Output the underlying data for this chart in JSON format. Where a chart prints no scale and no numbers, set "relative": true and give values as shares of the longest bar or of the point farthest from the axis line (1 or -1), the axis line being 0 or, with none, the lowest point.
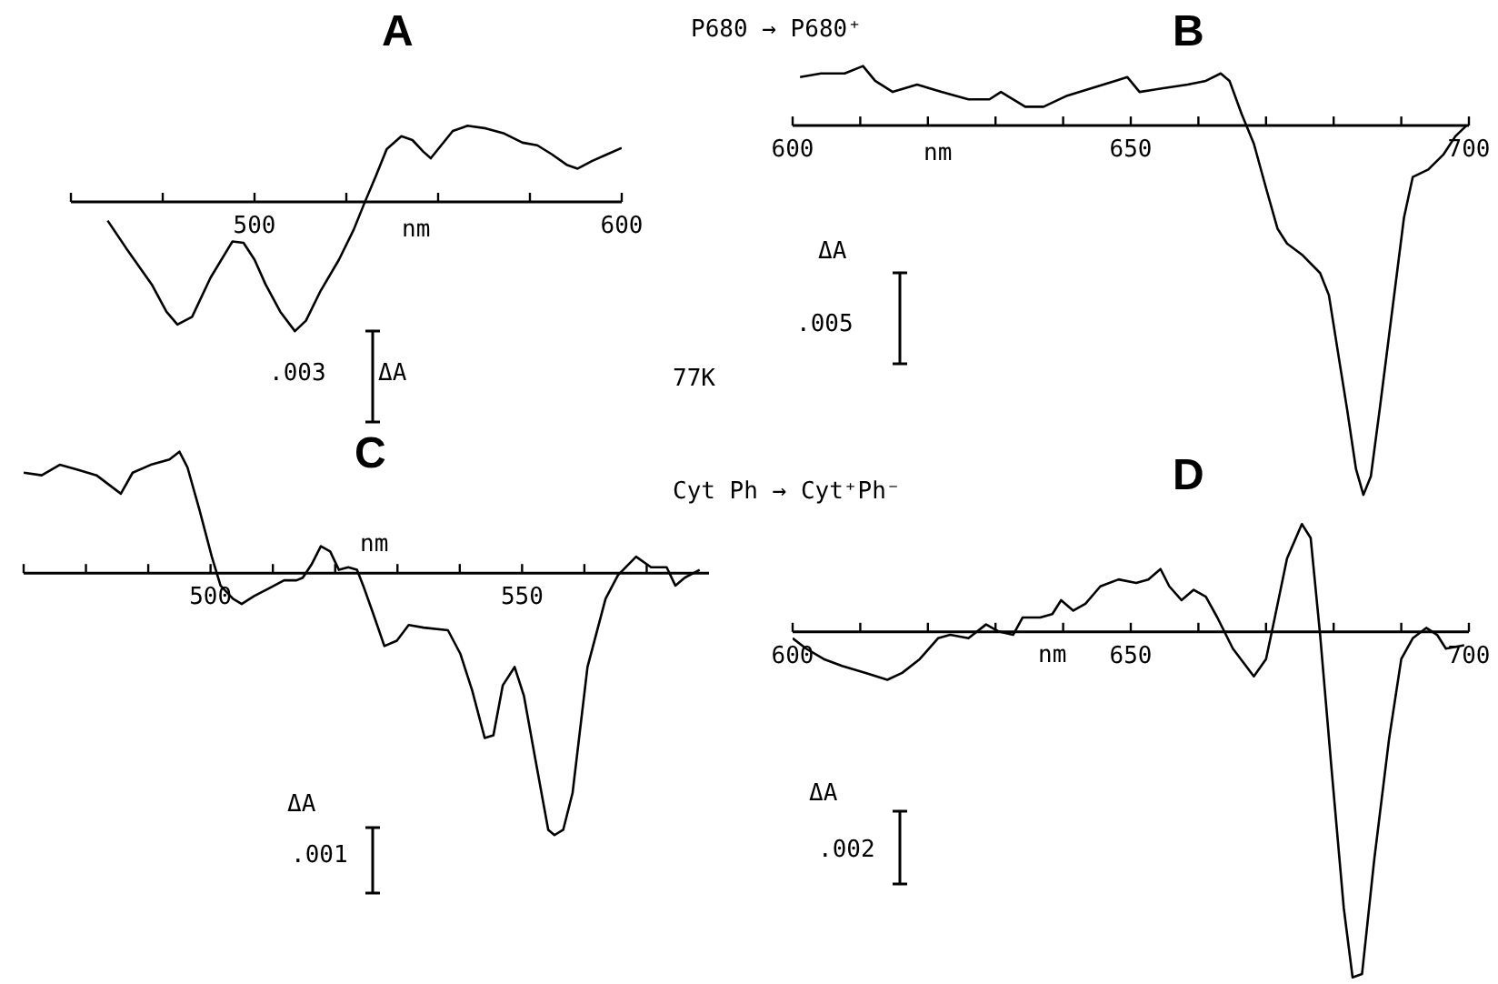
{
  "chart_data": [
    {
      "type": "line",
      "title": "A",
      "xlabel": "nm",
      "relative": true,
      "tick_labels": "x",
      "marker": "none",
      "line_style": "solid",
      "annotations": [
        ".003",
        "ΔA",
        "77K"
      ],
      "xlim": [
        450,
        600
      ],
      "xticks": [
        {
          "value": 450,
          "label": null
        },
        {
          "value": 475,
          "label": null
        },
        500,
        {
          "value": 525,
          "label": null
        },
        {
          "value": 550,
          "label": null
        },
        {
          "value": 575,
          "label": null
        },
        600
      ],
      "x": [
        460,
        465,
        472,
        476,
        479,
        483,
        488,
        494,
        497,
        500,
        503,
        507,
        511,
        514,
        518,
        523,
        527,
        530,
        533,
        536,
        540,
        543,
        546,
        548,
        550,
        554,
        558,
        563,
        568,
        573,
        577,
        581,
        585,
        588,
        592,
        596,
        600
      ],
      "series": [
        {
          "color": "#000000",
          "values": [
            -0.15,
            -0.36,
            -0.64,
            -0.85,
            -0.95,
            -0.89,
            -0.59,
            -0.31,
            -0.32,
            -0.45,
            -0.64,
            -0.85,
            -1,
            -0.92,
            -0.69,
            -0.45,
            -0.22,
            -0.01,
            0.19,
            0.4,
            0.5,
            0.47,
            0.38,
            0.33,
            0.4,
            0.54,
            0.58,
            0.56,
            0.52,
            0.45,
            0.43,
            0.36,
            0.28,
            0.25,
            0.31,
            0.36,
            0.41
          ]
        }
      ]
    },
    {
      "type": "line",
      "title": "B",
      "xlabel": "nm",
      "relative": true,
      "tick_labels": "x",
      "marker": "none",
      "line_style": "solid",
      "annotations": [
        "P680 → P680⁺",
        "ΔA",
        ".005"
      ],
      "xlim": [
        600,
        700
      ],
      "xticks": [
        600,
        {
          "value": 610,
          "label": null
        },
        {
          "value": 620,
          "label": null
        },
        {
          "value": 630,
          "label": null
        },
        {
          "value": 640,
          "label": null
        },
        650,
        {
          "value": 660,
          "label": null
        },
        {
          "value": 670,
          "label": null
        },
        {
          "value": 680,
          "label": null
        },
        {
          "value": 690,
          "label": null
        },
        700
      ],
      "x": [
        601.1,
        604.2,
        607.7,
        610.4,
        612.2,
        614.8,
        618.4,
        622,
        626,
        629.1,
        630.8,
        634.4,
        637.1,
        640.6,
        644.2,
        647.7,
        649.5,
        651.3,
        654.8,
        658.4,
        661.1,
        663.3,
        664.6,
        666.4,
        668.2,
        670,
        671.7,
        673.1,
        675.3,
        678,
        679.3,
        680.6,
        682,
        683.3,
        684.4,
        685.5,
        686.8,
        688.6,
        690.4,
        691.7,
        694,
        696.2,
        698,
        699.7
      ],
      "series": [
        {
          "color": "#000000",
          "values": [
            0.13,
            0.14,
            0.14,
            0.16,
            0.12,
            0.09,
            0.11,
            0.09,
            0.07,
            0.07,
            0.09,
            0.05,
            0.05,
            0.08,
            0.1,
            0.12,
            0.13,
            0.09,
            0.1,
            0.11,
            0.12,
            0.14,
            0.12,
            0.03,
            -0.05,
            -0.17,
            -0.28,
            -0.32,
            -0.35,
            -0.4,
            -0.46,
            -0.61,
            -0.77,
            -0.93,
            -1,
            -0.95,
            -0.77,
            -0.51,
            -0.25,
            -0.14,
            -0.12,
            -0.08,
            -0.03,
            0
          ]
        }
      ]
    },
    {
      "type": "line",
      "title": "C",
      "xlabel": "nm",
      "relative": true,
      "tick_labels": "x",
      "marker": "none",
      "line_style": "solid",
      "annotations": [
        "Cyt Ph → Cyt⁺Ph⁻",
        "ΔA",
        ".001"
      ],
      "xlim": [
        470,
        580
      ],
      "xticks": [
        {
          "value": 470,
          "label": null
        },
        {
          "value": 480,
          "label": null
        },
        {
          "value": 490,
          "label": null
        },
        500,
        {
          "value": 510,
          "label": null
        },
        {
          "value": 520,
          "label": null
        },
        {
          "value": 530,
          "label": null
        },
        {
          "value": 540,
          "label": null
        },
        550,
        {
          "value": 560,
          "label": null
        },
        {
          "value": 570,
          "label": null
        }
      ],
      "x": [
        470,
        472.9,
        475.8,
        478.8,
        481.7,
        485.6,
        487.5,
        490.4,
        493.4,
        495,
        496.3,
        498.2,
        500.2,
        501.6,
        503.6,
        505,
        507,
        509.4,
        511.8,
        513.8,
        514.8,
        516.2,
        517.7,
        519.2,
        520.6,
        522.1,
        523.5,
        524.5,
        526,
        527.9,
        529.9,
        531.8,
        534.2,
        538.1,
        540.1,
        542,
        544,
        545.4,
        546.9,
        548.8,
        550.3,
        552.2,
        554.2,
        555.2,
        556.6,
        558.1,
        560.5,
        563.4,
        565.4,
        568.3,
        570.7,
        573.2,
        574.6,
        576.1,
        578.5
      ],
      "series": [
        {
          "color": "#000000",
          "values": [
            0.38,
            0.37,
            0.41,
            0.39,
            0.37,
            0.3,
            0.38,
            0.41,
            0.43,
            0.46,
            0.4,
            0.24,
            0.06,
            -0.05,
            -0.1,
            -0.12,
            -0.09,
            -0.06,
            -0.03,
            -0.03,
            -0.02,
            0.03,
            0.1,
            0.08,
            0.01,
            0.02,
            0.01,
            -0.05,
            -0.15,
            -0.28,
            -0.26,
            -0.2,
            -0.21,
            -0.22,
            -0.31,
            -0.45,
            -0.63,
            -0.62,
            -0.43,
            -0.36,
            -0.47,
            -0.72,
            -0.98,
            -1,
            -0.98,
            -0.84,
            -0.36,
            -0.1,
            -0.01,
            0.06,
            0.02,
            0.02,
            -0.05,
            -0.02,
            0.01
          ]
        }
      ]
    },
    {
      "type": "line",
      "title": "D",
      "xlabel": "nm",
      "relative": true,
      "tick_labels": "x",
      "marker": "none",
      "line_style": "solid",
      "annotations": [
        "ΔA",
        ".002"
      ],
      "xlim": [
        600,
        700
      ],
      "xticks": [
        600,
        {
          "value": 610,
          "label": null
        },
        {
          "value": 620,
          "label": null
        },
        {
          "value": 630,
          "label": null
        },
        {
          "value": 640,
          "label": null
        },
        650,
        {
          "value": 660,
          "label": null
        },
        {
          "value": 670,
          "label": null
        },
        {
          "value": 680,
          "label": null
        },
        {
          "value": 690,
          "label": null
        },
        700
      ],
      "x": [
        600,
        602,
        604.6,
        607.3,
        610.8,
        614,
        616.2,
        618.8,
        621.5,
        623.3,
        626,
        628.6,
        630.4,
        632.6,
        634,
        636.6,
        638.4,
        639.7,
        641.5,
        643.3,
        645.5,
        648.2,
        650.8,
        652.6,
        654.4,
        655.7,
        657.5,
        659.3,
        661.1,
        662.8,
        665.1,
        668.2,
        670,
        671.3,
        673.1,
        675.3,
        676.6,
        678,
        679.7,
        681.5,
        682.8,
        684.2,
        686,
        688.2,
        690,
        691.7,
        693.7,
        695.3,
        696.6,
        699.3
      ],
      "series": [
        {
          "color": "#000000",
          "values": [
            -0.02,
            -0.05,
            -0.08,
            -0.1,
            -0.12,
            -0.14,
            -0.12,
            -0.08,
            -0.02,
            -0.01,
            -0.02,
            0.02,
            0,
            -0.01,
            0.04,
            0.04,
            0.05,
            0.09,
            0.06,
            0.08,
            0.13,
            0.15,
            0.14,
            0.15,
            0.18,
            0.13,
            0.09,
            0.12,
            0.1,
            0.04,
            -0.05,
            -0.13,
            -0.08,
            0.04,
            0.21,
            0.31,
            0.27,
            -0.01,
            -0.4,
            -0.8,
            -1,
            -0.99,
            -0.66,
            -0.31,
            -0.08,
            -0.02,
            0.01,
            -0.01,
            -0.05,
            -0.04
          ]
        }
      ]
    }
  ]
}
